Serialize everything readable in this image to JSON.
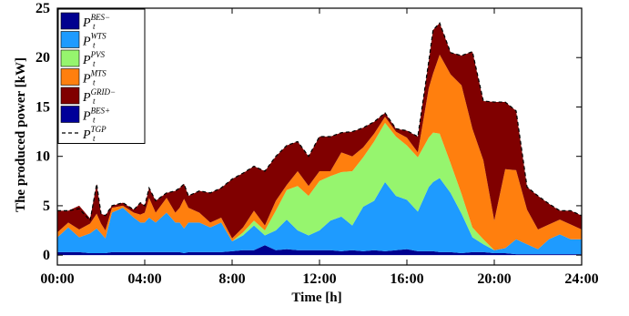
{
  "chart_data": {
    "type": "area",
    "xlabel": "Time [h]",
    "ylabel": "The produced power [kW]",
    "xlim": [
      0,
      24
    ],
    "ylim": [
      -1,
      25
    ],
    "grid": false,
    "legend_placement": "top-left",
    "xticks": [
      {
        "value": 0,
        "label": "00:00"
      },
      {
        "value": 4,
        "label": "04:00"
      },
      {
        "value": 8,
        "label": "8:00"
      },
      {
        "value": 12,
        "label": "12:00"
      },
      {
        "value": 16,
        "label": "16:00"
      },
      {
        "value": 20,
        "label": "20:00"
      },
      {
        "value": 24,
        "label": "24:00"
      }
    ],
    "yticks": [
      0,
      5,
      10,
      15,
      20,
      25
    ],
    "x": [
      0,
      0.5,
      1,
      1.5,
      1.8,
      2,
      2.2,
      2.5,
      3,
      3.5,
      3.8,
      4,
      4.2,
      4.5,
      5,
      5.4,
      5.6,
      5.8,
      6,
      6.5,
      7,
      7.5,
      8,
      8.5,
      9,
      9.5,
      10,
      10.5,
      11,
      11.5,
      12,
      12.5,
      13,
      13.5,
      14,
      14.5,
      15,
      15.5,
      16,
      16.5,
      17,
      17.2,
      17.5,
      18,
      18.5,
      19,
      19.5,
      20,
      20.5,
      21,
      21.5,
      22,
      22.5,
      23,
      23.5,
      24
    ],
    "series": [
      {
        "name": "P_t^BES-",
        "color": "#00008f",
        "values": [
          0.3,
          0.3,
          0.3,
          0.2,
          0.2,
          0.2,
          0.2,
          0.3,
          0.3,
          0.3,
          0.3,
          0.3,
          0.3,
          0.3,
          0.3,
          0.3,
          0.3,
          0.2,
          0.3,
          0.3,
          0.3,
          0.3,
          0.4,
          0.5,
          0.5,
          1.0,
          0.5,
          0.6,
          0.5,
          0.5,
          0.5,
          0.5,
          0.4,
          0.5,
          0.4,
          0.5,
          0.4,
          0.5,
          0.6,
          0.4,
          0.4,
          0.4,
          0.3,
          0.3,
          0.2,
          0.3,
          0.3,
          0.2,
          0.2,
          0.1,
          0.1,
          0.1,
          0.1,
          0.1,
          0.1,
          0.1
        ]
      },
      {
        "name": "P_t^WTS",
        "color": "#1e9bff",
        "values": [
          1.5,
          2.5,
          1.5,
          2.0,
          2.5,
          2.0,
          1.5,
          4.0,
          4.5,
          3.5,
          3.0,
          3.0,
          3.5,
          3.0,
          4.0,
          3.0,
          3.0,
          2.5,
          3.0,
          3.0,
          2.5,
          3.0,
          1.0,
          1.5,
          2.5,
          1.0,
          2.0,
          3.0,
          2.0,
          1.5,
          2.0,
          3.0,
          3.5,
          2.5,
          4.5,
          5.0,
          7.0,
          5.5,
          5.0,
          4.0,
          6.5,
          7.0,
          7.5,
          6.0,
          4.0,
          1.5,
          0.8,
          0.3,
          0.5,
          1.5,
          1.0,
          0.5,
          1.5,
          2.0,
          1.5,
          1.5
        ]
      },
      {
        "name": "P_t^PVS",
        "color": "#96f56e",
        "values": [
          0,
          0,
          0,
          0,
          0,
          0,
          0,
          0,
          0,
          0,
          0,
          0,
          0,
          0,
          0,
          0,
          0,
          0,
          0,
          0,
          0,
          0,
          0,
          0.3,
          0.5,
          0.5,
          2.0,
          3.0,
          4.5,
          4.0,
          5.0,
          4.5,
          4.5,
          5.5,
          5.0,
          6.0,
          6.0,
          6.0,
          5.5,
          5.5,
          5.0,
          5.0,
          4.5,
          3.0,
          2.0,
          1.0,
          0.5,
          0,
          0,
          0,
          0,
          0,
          0,
          0,
          0,
          0
        ]
      },
      {
        "name": "P_t^MTS",
        "color": "#ff7f0e",
        "values": [
          0.5,
          0.5,
          0.8,
          1.0,
          1.5,
          1.0,
          0.8,
          0.5,
          0.2,
          0.5,
          0.8,
          1.0,
          2.0,
          1.0,
          1.5,
          1.0,
          1.5,
          3.0,
          1.5,
          1.0,
          0.5,
          0.5,
          0.3,
          0.5,
          1.0,
          0.5,
          1.0,
          0.5,
          1.5,
          1.0,
          1.0,
          0.5,
          2.0,
          1.5,
          1.0,
          0.8,
          0.6,
          0.5,
          0.8,
          0.5,
          5.0,
          6.0,
          8.0,
          9.0,
          11.0,
          10.0,
          8.0,
          3.0,
          8.0,
          7.0,
          3.5,
          2.0,
          1.5,
          1.5,
          1.5,
          1.0
        ]
      },
      {
        "name": "P_t^GRID-",
        "color": "#800000",
        "values": [
          2.2,
          1.2,
          2.4,
          0.5,
          3.0,
          1.0,
          1.5,
          0.2,
          0.3,
          0.3,
          1.2,
          0.7,
          1.0,
          1.2,
          0.5,
          2.2,
          2.0,
          1.5,
          1.2,
          2.2,
          3.0,
          3.0,
          6.0,
          5.5,
          4.5,
          5.5,
          4.5,
          4.0,
          3.0,
          3.0,
          3.5,
          3.5,
          2.0,
          2.5,
          2.0,
          1.2,
          0.4,
          0.3,
          0.7,
          1.6,
          2.7,
          4.4,
          3.2,
          2.2,
          3.0,
          7.8,
          6.0,
          12.0,
          6.8,
          6.0,
          2.3,
          3.4,
          2.1,
          0.9,
          1.4,
          1.4
        ]
      },
      {
        "name": "P_t^BES+",
        "color": "#000099",
        "values": [
          0,
          0,
          0,
          0,
          0,
          0,
          0,
          0,
          0,
          0,
          0,
          0,
          0,
          0,
          0,
          0,
          0,
          0,
          0,
          0,
          0,
          0,
          0,
          0,
          0,
          0,
          0,
          0,
          0,
          0,
          0,
          0,
          0,
          0,
          0,
          0,
          0,
          0,
          0,
          0,
          0,
          0,
          0,
          0,
          0,
          0,
          0,
          0,
          0,
          0,
          0,
          0,
          0,
          0,
          0,
          0
        ]
      },
      {
        "name": "P_t^TGP",
        "color": "#000000",
        "style": "dashed",
        "values": [
          4.5,
          4.5,
          4.7,
          3.5,
          7.2,
          4.2,
          4.0,
          5.0,
          5.3,
          4.6,
          5.3,
          5.0,
          6.8,
          5.5,
          6.3,
          6.5,
          6.8,
          7.2,
          6.0,
          6.5,
          6.3,
          6.8,
          7.7,
          8.3,
          9.0,
          8.5,
          10.0,
          11.1,
          11.5,
          10.0,
          12.0,
          12.0,
          12.4,
          12.5,
          12.9,
          13.5,
          14.4,
          12.8,
          12.6,
          12.0,
          19.6,
          22.8,
          23.5,
          20.5,
          20.2,
          20.6,
          15.6,
          15.5,
          15.5,
          14.6,
          6.9,
          6.0,
          5.2,
          4.5,
          4.5,
          4.0
        ]
      }
    ]
  },
  "legend": {
    "items": [
      {
        "label": "P",
        "sub": "t",
        "sup": "BES−",
        "color": "#00008f",
        "kind": "patch"
      },
      {
        "label": "P",
        "sub": "t",
        "sup": "WTS",
        "color": "#1e9bff",
        "kind": "patch"
      },
      {
        "label": "P",
        "sub": "t",
        "sup": "PVS",
        "color": "#96f56e",
        "kind": "patch"
      },
      {
        "label": "P",
        "sub": "t",
        "sup": "MTS",
        "color": "#ff7f0e",
        "kind": "patch"
      },
      {
        "label": "P",
        "sub": "t",
        "sup": "GRID−",
        "color": "#800000",
        "kind": "patch"
      },
      {
        "label": "P",
        "sub": "t",
        "sup": "BES+",
        "color": "#000099",
        "kind": "patch"
      },
      {
        "label": "P",
        "sub": "t",
        "sup": "TGP",
        "color": "#000000",
        "kind": "dashed-line"
      }
    ]
  }
}
